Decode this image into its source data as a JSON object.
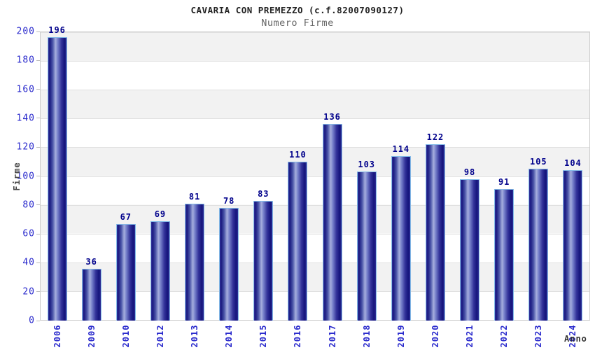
{
  "chart_data": {
    "type": "bar",
    "title": "CAVARIA CON PREMEZZO (c.f.82007090127)",
    "subtitle": "Numero Firme",
    "xlabel": "Anno",
    "ylabel": "Firme",
    "categories": [
      "2006",
      "2009",
      "2010",
      "2012",
      "2013",
      "2014",
      "2015",
      "2016",
      "2017",
      "2018",
      "2019",
      "2020",
      "2021",
      "2022",
      "2023",
      "2024"
    ],
    "values": [
      196,
      36,
      67,
      69,
      81,
      78,
      83,
      110,
      136,
      103,
      114,
      122,
      98,
      91,
      105,
      104
    ],
    "ylim": [
      0,
      200
    ],
    "yticks": [
      0,
      20,
      40,
      60,
      80,
      100,
      120,
      140,
      160,
      180,
      200
    ],
    "grid": "horizontal",
    "legend": "none",
    "colors": {
      "bar_dark": "#1a1a80",
      "bar_light": "#a6aede",
      "bar_border": "#85bce8",
      "value_label": "#00008b",
      "tick_label": "#2929cc",
      "stripe": "#f2f2f2",
      "plot_border": "#cccccc",
      "title": "#222222",
      "subtitle": "#666666"
    }
  }
}
